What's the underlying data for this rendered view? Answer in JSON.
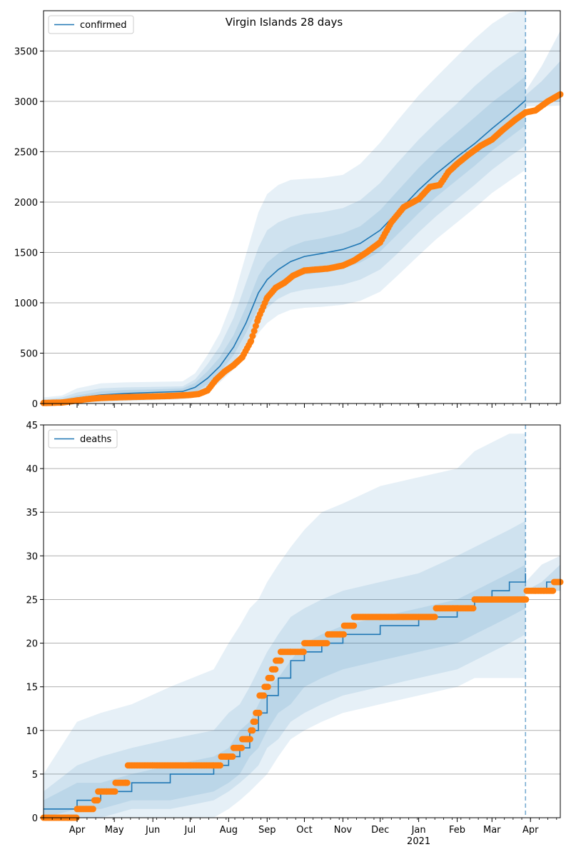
{
  "title": "Virgin Islands 28 days",
  "colors": {
    "model": "#1f77b4",
    "observed": "#ff7f0e",
    "band": "#1f77b4",
    "grid": "#b0b0b0",
    "vline": "#1f77b4"
  },
  "x_ticks": {
    "months": [
      "Apr",
      "May",
      "Jun",
      "Jul",
      "Aug",
      "Sep",
      "Oct",
      "Nov",
      "Dec",
      "2021",
      "Feb",
      "Mar",
      "Apr"
    ],
    "month_dates": [
      "2020-04-01",
      "2020-05-01",
      "2020-06-01",
      "2020-07-01",
      "2020-08-01",
      "2020-09-01",
      "2020-10-01",
      "2020-11-01",
      "2020-12-01",
      "2021-01-01",
      "2021-02-01",
      "2021-03-01",
      "2021-04-01"
    ],
    "jan_label": "Jan",
    "year_label": "2021"
  },
  "chart_data": [
    {
      "type": "line",
      "legend": "confirmed",
      "legend_position": "top-left",
      "x_range": [
        "2020-03-05",
        "2021-04-25"
      ],
      "forecast_start": "2021-03-28",
      "ylim": [
        0,
        3900
      ],
      "yticks": [
        0,
        500,
        1000,
        1500,
        2000,
        2500,
        3000,
        3500
      ],
      "grid": "horizontal",
      "model_series": {
        "name": "confirmed",
        "x": [
          "2020-03-05",
          "2020-03-20",
          "2020-04-01",
          "2020-04-20",
          "2020-05-10",
          "2020-06-01",
          "2020-06-25",
          "2020-07-05",
          "2020-07-15",
          "2020-07-25",
          "2020-08-05",
          "2020-08-15",
          "2020-08-25",
          "2020-09-01",
          "2020-09-10",
          "2020-09-20",
          "2020-10-01",
          "2020-10-15",
          "2020-11-01",
          "2020-11-15",
          "2020-12-01",
          "2020-12-15",
          "2021-01-01",
          "2021-01-15",
          "2021-02-01",
          "2021-02-15",
          "2021-03-01",
          "2021-03-15",
          "2021-03-28"
        ],
        "y": [
          0,
          20,
          55,
          85,
          100,
          110,
          120,
          160,
          250,
          370,
          560,
          800,
          1100,
          1230,
          1330,
          1410,
          1460,
          1490,
          1530,
          1590,
          1720,
          1900,
          2120,
          2280,
          2450,
          2580,
          2730,
          2870,
          3010
        ]
      },
      "bands": [
        {
          "lower": [
            0,
            0,
            0,
            10,
            20,
            30,
            40,
            60,
            120,
            210,
            340,
            500,
            700,
            800,
            880,
            930,
            950,
            960,
            980,
            1020,
            1110,
            1270,
            1470,
            1630,
            1800,
            1940,
            2090,
            2210,
            2320
          ],
          "upper": [
            60,
            80,
            150,
            200,
            210,
            215,
            220,
            300,
            480,
            700,
            1050,
            1480,
            1900,
            2080,
            2170,
            2220,
            2230,
            2240,
            2270,
            2380,
            2590,
            2810,
            3060,
            3240,
            3450,
            3620,
            3770,
            3880,
            3900
          ]
        },
        {
          "lower": [
            0,
            0,
            10,
            25,
            40,
            50,
            60,
            80,
            150,
            260,
            410,
            600,
            830,
            950,
            1040,
            1100,
            1130,
            1150,
            1180,
            1230,
            1330,
            1490,
            1700,
            1860,
            2030,
            2170,
            2320,
            2450,
            2560
          ],
          "upper": [
            40,
            60,
            110,
            150,
            160,
            165,
            170,
            240,
            390,
            570,
            850,
            1200,
            1550,
            1720,
            1800,
            1850,
            1880,
            1900,
            1940,
            2020,
            2190,
            2390,
            2620,
            2790,
            2980,
            3150,
            3300,
            3430,
            3530
          ]
        },
        {
          "lower": [
            0,
            5,
            25,
            45,
            60,
            70,
            80,
            110,
            190,
            310,
            480,
            700,
            950,
            1080,
            1170,
            1240,
            1280,
            1300,
            1340,
            1400,
            1510,
            1680,
            1890,
            2050,
            2220,
            2360,
            2510,
            2640,
            2760
          ],
          "upper": [
            20,
            40,
            80,
            120,
            135,
            140,
            150,
            205,
            320,
            460,
            680,
            960,
            1270,
            1400,
            1490,
            1560,
            1610,
            1640,
            1690,
            1760,
            1920,
            2110,
            2340,
            2510,
            2690,
            2840,
            2990,
            3120,
            3250
          ]
        }
      ],
      "post_bands": [
        {
          "x": [
            "2021-03-28",
            "2021-04-10",
            "2021-04-25"
          ],
          "lower": [
            2950,
            2950,
            2960
          ],
          "upper": [
            3100,
            3350,
            3700
          ]
        },
        {
          "x": [
            "2021-03-28",
            "2021-04-10",
            "2021-04-25"
          ],
          "lower": [
            2980,
            2990,
            3000
          ],
          "upper": [
            3060,
            3200,
            3400
          ]
        }
      ],
      "observed": {
        "name": "observed",
        "x": [
          "2020-03-05",
          "2020-03-20",
          "2020-04-01",
          "2020-04-10",
          "2020-04-20",
          "2020-05-01",
          "2020-05-15",
          "2020-06-01",
          "2020-06-15",
          "2020-07-01",
          "2020-07-08",
          "2020-07-15",
          "2020-07-22",
          "2020-07-29",
          "2020-08-05",
          "2020-08-12",
          "2020-08-19",
          "2020-08-25",
          "2020-09-01",
          "2020-09-08",
          "2020-09-15",
          "2020-09-22",
          "2020-10-01",
          "2020-10-10",
          "2020-10-20",
          "2020-11-01",
          "2020-11-10",
          "2020-11-20",
          "2020-12-01",
          "2020-12-10",
          "2020-12-20",
          "2021-01-01",
          "2021-01-10",
          "2021-01-18",
          "2021-01-25",
          "2021-02-01",
          "2021-02-10",
          "2021-02-20",
          "2021-03-01",
          "2021-03-10",
          "2021-03-20",
          "2021-03-28",
          "2021-04-05",
          "2021-04-15",
          "2021-04-25"
        ],
        "y": [
          5,
          10,
          30,
          45,
          55,
          60,
          65,
          70,
          75,
          85,
          95,
          130,
          240,
          320,
          380,
          460,
          620,
          850,
          1050,
          1150,
          1200,
          1270,
          1320,
          1330,
          1340,
          1370,
          1420,
          1500,
          1600,
          1800,
          1950,
          2030,
          2150,
          2170,
          2300,
          2380,
          2470,
          2560,
          2620,
          2720,
          2820,
          2890,
          2910,
          3000,
          3070
        ]
      }
    },
    {
      "type": "line",
      "legend": "deaths",
      "legend_position": "top-left",
      "x_range": [
        "2020-03-05",
        "2021-04-25"
      ],
      "forecast_start": "2021-03-28",
      "ylim": [
        0,
        45
      ],
      "yticks": [
        0,
        5,
        10,
        15,
        20,
        25,
        30,
        35,
        40,
        45
      ],
      "grid": "horizontal",
      "model_series": {
        "name": "deaths",
        "x": [
          "2020-03-05",
          "2020-04-01",
          "2020-04-20",
          "2020-05-15",
          "2020-06-15",
          "2020-07-20",
          "2020-08-01",
          "2020-08-10",
          "2020-08-18",
          "2020-08-25",
          "2020-09-01",
          "2020-09-10",
          "2020-09-20",
          "2020-10-01",
          "2020-10-15",
          "2020-11-01",
          "2020-12-01",
          "2021-01-01",
          "2021-02-01",
          "2021-02-15",
          "2021-03-01",
          "2021-03-15",
          "2021-03-28"
        ],
        "y": [
          1,
          2,
          3,
          4,
          5,
          6,
          7,
          8,
          10,
          12,
          14,
          16,
          18,
          19,
          20,
          21,
          22,
          23,
          24,
          25,
          26,
          27,
          28
        ]
      },
      "bands": [
        {
          "lower": [
            0,
            0,
            0,
            0,
            0,
            0,
            1,
            2,
            3,
            4,
            5,
            7,
            9,
            10,
            11,
            12,
            13,
            14,
            15,
            16,
            16,
            16,
            16
          ],
          "upper": [
            5,
            11,
            12,
            13,
            15,
            17,
            20,
            22,
            24,
            25,
            27,
            29,
            31,
            33,
            35,
            36,
            38,
            39,
            40,
            42,
            43,
            44,
            44
          ]
        },
        {
          "lower": [
            0,
            0,
            0,
            1,
            1,
            2,
            3,
            4,
            5,
            6,
            8,
            9,
            11,
            12,
            13,
            14,
            15,
            16,
            17,
            18,
            19,
            20,
            21
          ],
          "upper": [
            3,
            6,
            7,
            8,
            9,
            10,
            12,
            13,
            15,
            17,
            19,
            21,
            23,
            24,
            25,
            26,
            27,
            28,
            30,
            31,
            32,
            33,
            34
          ]
        },
        {
          "lower": [
            0,
            1,
            1,
            2,
            2,
            3,
            4,
            5,
            7,
            8,
            10,
            12,
            13,
            15,
            16,
            17,
            18,
            19,
            20,
            21,
            22,
            23,
            24
          ],
          "upper": [
            2,
            4,
            4,
            5,
            6,
            7,
            8,
            10,
            11,
            13,
            15,
            16,
            18,
            20,
            21,
            22,
            23,
            24,
            25,
            26,
            27,
            28,
            29
          ]
        }
      ],
      "post_bands": [
        {
          "x": [
            "2021-03-28",
            "2021-04-10",
            "2021-04-25"
          ],
          "lower": [
            26,
            26,
            26
          ],
          "upper": [
            27,
            29,
            30
          ]
        },
        {
          "x": [
            "2021-03-28",
            "2021-04-10",
            "2021-04-25"
          ],
          "lower": [
            26,
            26,
            26
          ],
          "upper": [
            26,
            27,
            29
          ]
        }
      ],
      "post_model": {
        "x": [
          "2021-03-28",
          "2021-04-14",
          "2021-04-25"
        ],
        "y": [
          26,
          27,
          27
        ]
      },
      "observed": {
        "name": "observed",
        "x": [
          "2020-03-05",
          "2020-03-25",
          "2020-04-01",
          "2020-04-10",
          "2020-04-15",
          "2020-04-18",
          "2020-04-25",
          "2020-05-02",
          "2020-05-10",
          "2020-05-12",
          "2020-06-01",
          "2020-07-01",
          "2020-07-20",
          "2020-07-26",
          "2020-07-30",
          "2020-08-05",
          "2020-08-12",
          "2020-08-17",
          "2020-08-19",
          "2020-08-21",
          "2020-08-23",
          "2020-08-26",
          "2020-08-28",
          "2020-08-30",
          "2020-09-02",
          "2020-09-05",
          "2020-09-08",
          "2020-09-12",
          "2020-09-20",
          "2020-10-01",
          "2020-10-10",
          "2020-10-20",
          "2020-10-30",
          "2020-11-02",
          "2020-11-10",
          "2020-12-01",
          "2020-12-20",
          "2021-01-01",
          "2021-01-15",
          "2021-02-01",
          "2021-02-10",
          "2021-02-15",
          "2021-03-01",
          "2021-03-15",
          "2021-03-27",
          "2021-03-29",
          "2021-04-05",
          "2021-04-10",
          "2021-04-20",
          "2021-04-25"
        ],
        "y": [
          0,
          0,
          1,
          1,
          2,
          3,
          3,
          4,
          4,
          6,
          6,
          6,
          6,
          7,
          7,
          8,
          9,
          9,
          10,
          11,
          12,
          14,
          14,
          15,
          16,
          17,
          18,
          19,
          19,
          20,
          20,
          21,
          21,
          22,
          23,
          23,
          23,
          23,
          24,
          24,
          24,
          25,
          25,
          25,
          25,
          26,
          26,
          26,
          27,
          27
        ]
      }
    }
  ]
}
